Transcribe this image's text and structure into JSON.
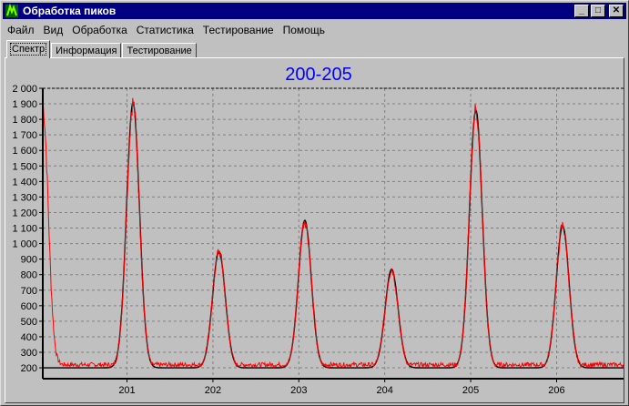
{
  "window": {
    "title": "Обработка пиков",
    "controls": {
      "minimize": "_",
      "maximize": "□",
      "close": "✕"
    }
  },
  "menu": [
    "Файл",
    "Вид",
    "Обработка",
    "Статистика",
    "Тестирование",
    "Помощь"
  ],
  "tabs": [
    {
      "label": "Спектр",
      "active": true
    },
    {
      "label": "Информация",
      "active": false
    },
    {
      "label": "Тестирование",
      "active": false
    }
  ],
  "colors": {
    "title": "#0000ff",
    "fit_line": "#000000",
    "measured_line": "#ff0000",
    "plot_background": "#c0c0c0",
    "grid": "#808080"
  },
  "chart_data": {
    "type": "line",
    "title": "200-205",
    "xlabel": "",
    "ylabel": "",
    "xlim": [
      200.02,
      206.8
    ],
    "ylim": [
      130,
      2000
    ],
    "yticks": [
      200,
      300,
      400,
      500,
      600,
      700,
      800,
      900,
      1000,
      1100,
      1200,
      1300,
      1400,
      1500,
      1600,
      1700,
      1800,
      1900,
      2000
    ],
    "ytick_labels": [
      "200",
      "300",
      "400",
      "500",
      "600",
      "700",
      "800",
      "900",
      "1 000",
      "1 100",
      "1 200",
      "1 300",
      "1 400",
      "1 500",
      "1 600",
      "1 700",
      "1 800",
      "1 900",
      "2 000"
    ],
    "xticks": [
      201,
      202,
      203,
      204,
      205,
      206
    ],
    "xtick_labels": [
      "201",
      "202",
      "203",
      "204",
      "205",
      "206"
    ],
    "grid": true,
    "legend": "none",
    "baseline": 200,
    "peaks": [
      {
        "x": 201.07,
        "height": 1905,
        "measured_max": 2000
      },
      {
        "x": 202.07,
        "height": 950,
        "measured_max": 985
      },
      {
        "x": 203.07,
        "height": 1150,
        "measured_max": 1200
      },
      {
        "x": 204.08,
        "height": 835,
        "measured_max": 840
      },
      {
        "x": 205.06,
        "height": 1860,
        "measured_max": 1880
      },
      {
        "x": 206.07,
        "height": 1115,
        "measured_max": 1120
      }
    ],
    "series": [
      {
        "values": "fit (black)"
      },
      {
        "values": "measured (red)",
        "start_value": 1880
      }
    ]
  }
}
